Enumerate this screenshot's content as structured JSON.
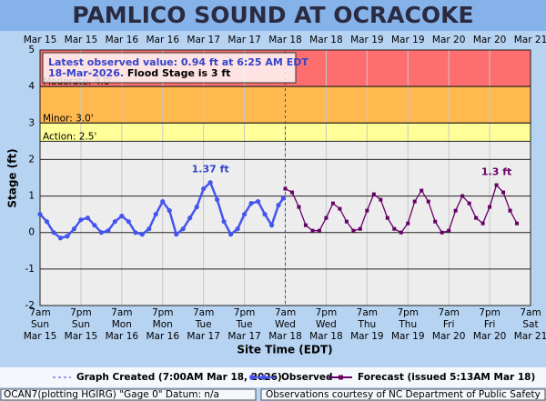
{
  "chart_data": {
    "type": "line",
    "title": "PAMLICO SOUND AT OCRACOKE",
    "y_label": "Stage (ft)",
    "x_label": "Site Time (EDT)",
    "info": [
      "Latest observed value: 0.94 ft at 6:25 AM EDT",
      "18-Mar-2026.",
      "Flood Stage is 3 ft"
    ],
    "ylim": [
      -2,
      5
    ],
    "yticks": [
      -2,
      -1,
      0,
      1,
      2,
      3,
      4,
      5
    ],
    "grid": true,
    "xlim": [
      "2026-03-15T07:00",
      "2026-03-21T07:00"
    ],
    "xticks": [
      {
        "value": "2026-03-15T07:00",
        "label": [
          "7am",
          "Sun",
          "Mar 15"
        ]
      },
      {
        "value": "2026-03-15T19:00",
        "label": [
          "7pm",
          "Sun",
          "Mar 15"
        ]
      },
      {
        "value": "2026-03-16T07:00",
        "label": [
          "7am",
          "Mon",
          "Mar 16"
        ]
      },
      {
        "value": "2026-03-16T19:00",
        "label": [
          "7pm",
          "Mon",
          "Mar 16"
        ]
      },
      {
        "value": "2026-03-17T07:00",
        "label": [
          "7am",
          "Tue",
          "Mar 17"
        ]
      },
      {
        "value": "2026-03-17T19:00",
        "label": [
          "7pm",
          "Tue",
          "Mar 17"
        ]
      },
      {
        "value": "2026-03-18T07:00",
        "label": [
          "7am",
          "Wed",
          "Mar 18"
        ]
      },
      {
        "value": "2026-03-18T19:00",
        "label": [
          "7pm",
          "Wed",
          "Mar 18"
        ]
      },
      {
        "value": "2026-03-19T07:00",
        "label": [
          "7am",
          "Thu",
          "Mar 19"
        ]
      },
      {
        "value": "2026-03-19T19:00",
        "label": [
          "7pm",
          "Thu",
          "Mar 19"
        ]
      },
      {
        "value": "2026-03-20T07:00",
        "label": [
          "7am",
          "Fri",
          "Mar 20"
        ]
      },
      {
        "value": "2026-03-20T19:00",
        "label": [
          "7pm",
          "Fri",
          "Mar 20"
        ]
      },
      {
        "value": "2026-03-21T07:00",
        "label": [
          "7am",
          "Sat",
          "Mar 21"
        ]
      }
    ],
    "xticks_top": [
      "Mar 15",
      "Mar 15",
      "Mar 16",
      "Mar 16",
      "Mar 17",
      "Mar 17",
      "Mar 18",
      "Mar 18",
      "Mar 19",
      "Mar 19",
      "Mar 20",
      "Mar 20",
      "Mar 21"
    ],
    "thresholds": [
      {
        "label": "Action: 2.5'",
        "value": 2.5,
        "color": "#ffff99"
      },
      {
        "label": "Minor: 3.0'",
        "value": 3.0,
        "color": "#ffb94f"
      },
      {
        "label": "Moderate: 4.0'",
        "value": 4.0,
        "color": "#ff6e6e"
      }
    ],
    "graph_created": {
      "x": "2026-03-18T07:00",
      "label": "Graph Created (7:00AM Mar 18, 2026)",
      "color": "#3344cc"
    },
    "series": [
      {
        "name": "Observed",
        "color": "#4455ee",
        "marker": "circle",
        "x": [
          "2026-03-15T07:00",
          "2026-03-15T09:00",
          "2026-03-15T11:00",
          "2026-03-15T13:00",
          "2026-03-15T15:00",
          "2026-03-15T17:00",
          "2026-03-15T19:00",
          "2026-03-15T21:00",
          "2026-03-15T23:00",
          "2026-03-16T01:00",
          "2026-03-16T03:00",
          "2026-03-16T05:00",
          "2026-03-16T07:00",
          "2026-03-16T09:00",
          "2026-03-16T11:00",
          "2026-03-16T13:00",
          "2026-03-16T15:00",
          "2026-03-16T17:00",
          "2026-03-16T19:00",
          "2026-03-16T21:00",
          "2026-03-16T23:00",
          "2026-03-17T01:00",
          "2026-03-17T03:00",
          "2026-03-17T05:00",
          "2026-03-17T07:00",
          "2026-03-17T09:00",
          "2026-03-17T11:00",
          "2026-03-17T13:00",
          "2026-03-17T15:00",
          "2026-03-17T17:00",
          "2026-03-17T19:00",
          "2026-03-17T21:00",
          "2026-03-17T23:00",
          "2026-03-18T01:00",
          "2026-03-18T03:00",
          "2026-03-18T05:00",
          "2026-03-18T06:25"
        ],
        "values": [
          0.5,
          0.3,
          0.0,
          -0.15,
          -0.1,
          0.1,
          0.35,
          0.4,
          0.2,
          0.0,
          0.05,
          0.3,
          0.45,
          0.3,
          0.0,
          -0.05,
          0.1,
          0.5,
          0.85,
          0.6,
          -0.05,
          0.1,
          0.4,
          0.7,
          1.2,
          1.37,
          0.9,
          0.3,
          -0.05,
          0.1,
          0.5,
          0.8,
          0.85,
          0.5,
          0.2,
          0.75,
          0.94
        ]
      },
      {
        "name": "Forecast (issued 5:13AM Mar 18)",
        "color": "#660066",
        "marker": "square",
        "x": [
          "2026-03-18T07:00",
          "2026-03-18T09:00",
          "2026-03-18T11:00",
          "2026-03-18T13:00",
          "2026-03-18T15:00",
          "2026-03-18T17:00",
          "2026-03-18T19:00",
          "2026-03-18T21:00",
          "2026-03-18T23:00",
          "2026-03-19T01:00",
          "2026-03-19T03:00",
          "2026-03-19T05:00",
          "2026-03-19T07:00",
          "2026-03-19T09:00",
          "2026-03-19T11:00",
          "2026-03-19T13:00",
          "2026-03-19T15:00",
          "2026-03-19T17:00",
          "2026-03-19T19:00",
          "2026-03-19T21:00",
          "2026-03-19T23:00",
          "2026-03-20T01:00",
          "2026-03-20T03:00",
          "2026-03-20T05:00",
          "2026-03-20T07:00",
          "2026-03-20T09:00",
          "2026-03-20T11:00",
          "2026-03-20T13:00",
          "2026-03-20T15:00",
          "2026-03-20T17:00",
          "2026-03-20T19:00",
          "2026-03-20T21:00",
          "2026-03-20T23:00",
          "2026-03-21T01:00",
          "2026-03-21T03:00"
        ],
        "values": [
          1.2,
          1.1,
          0.7,
          0.2,
          0.05,
          0.05,
          0.4,
          0.8,
          0.65,
          0.3,
          0.05,
          0.1,
          0.6,
          1.05,
          0.9,
          0.4,
          0.1,
          0.0,
          0.25,
          0.85,
          1.15,
          0.85,
          0.3,
          0.0,
          0.05,
          0.6,
          1.0,
          0.8,
          0.4,
          0.25,
          0.7,
          1.3,
          1.1,
          0.6,
          0.25
        ]
      }
    ],
    "annotations": [
      {
        "text": "1.37 ft",
        "x": "2026-03-17T09:00",
        "y": 1.37,
        "color": "#3344cc"
      },
      {
        "text": "1.3 ft",
        "x": "2026-03-20T21:00",
        "y": 1.3,
        "color": "#660066"
      }
    ],
    "footer_left": "OCAN7(plotting HGIRG) \"Gage 0\" Datum: n/a",
    "footer_right": "Observations courtesy of NC Department of Public Safety"
  }
}
